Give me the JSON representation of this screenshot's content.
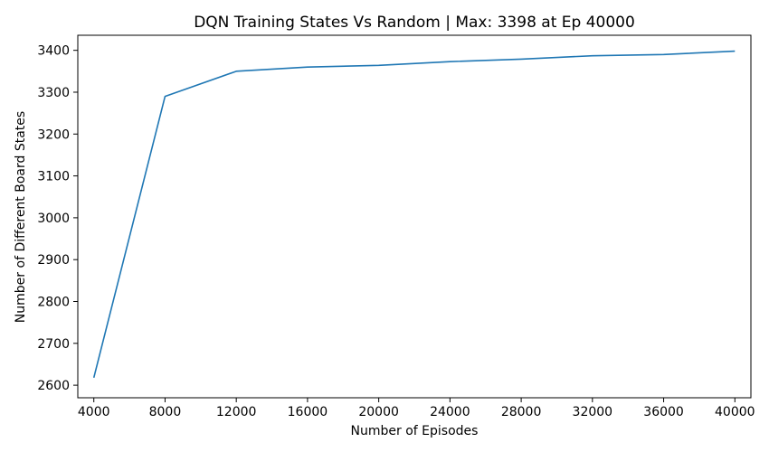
{
  "chart_data": {
    "type": "line",
    "title": "DQN Training States Vs Random | Max: 3398 at Ep 40000",
    "xlabel": "Number of Episodes",
    "ylabel": "Number of Different Board States",
    "xlim": [
      3100,
      40900
    ],
    "ylim": [
      2570,
      3436
    ],
    "xticks": [
      4000,
      8000,
      12000,
      16000,
      20000,
      24000,
      28000,
      32000,
      36000,
      40000
    ],
    "yticks": [
      2600,
      2700,
      2800,
      2900,
      3000,
      3100,
      3200,
      3300,
      3400
    ],
    "grid": false,
    "colors": {
      "line": "#1f77b4"
    },
    "series": [
      {
        "x": [
          4000,
          8000,
          12000,
          16000,
          20000,
          24000,
          28000,
          32000,
          36000,
          40000
        ],
        "values": [
          2618,
          3290,
          3350,
          3360,
          3364,
          3373,
          3379,
          3387,
          3390,
          3398
        ]
      }
    ]
  }
}
